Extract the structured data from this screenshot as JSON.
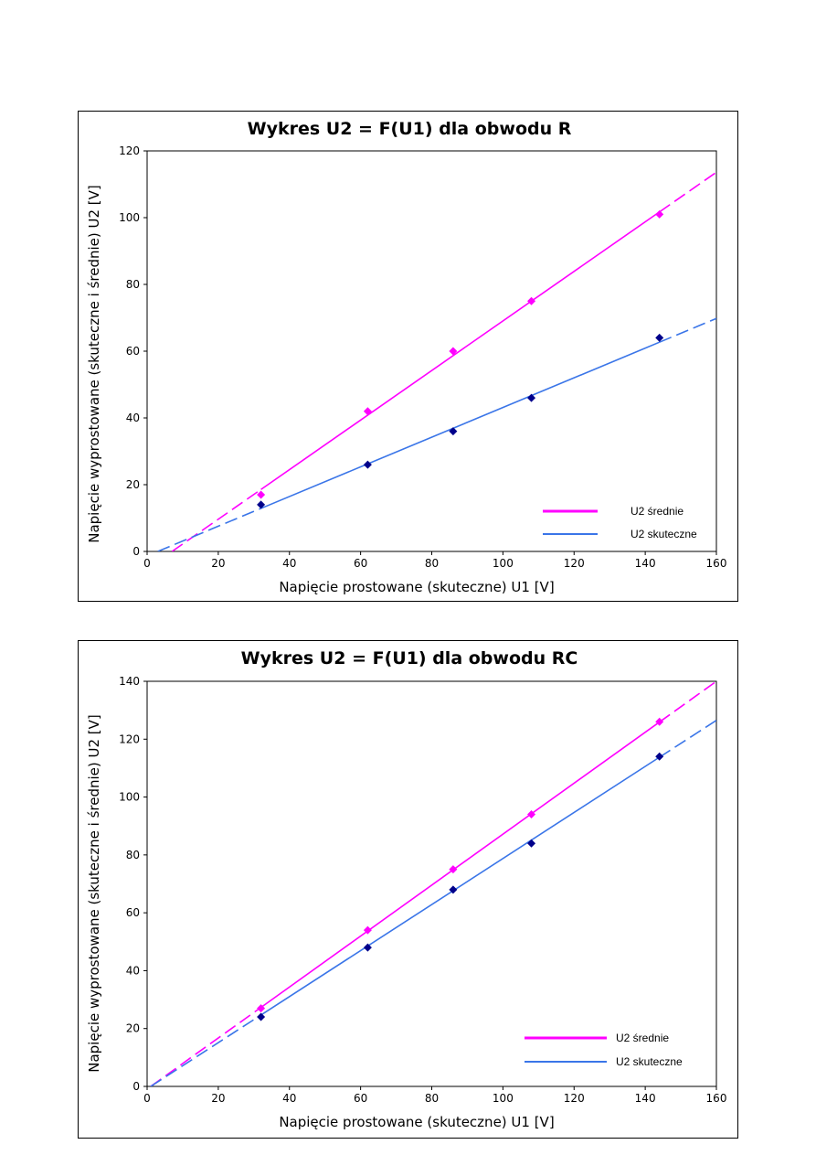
{
  "chart_data": [
    {
      "type": "scatter",
      "title": "Wykres U2 = F(U1) dla obwodu R",
      "xlabel": "Napięcie prostowane (skuteczne) U1 [V]",
      "ylabel": "Napięcie wyprostowane (skuteczne i średnie) U2 [V]",
      "xlim": [
        0,
        160
      ],
      "ylim": [
        0,
        120
      ],
      "xticks": [
        "0",
        "20",
        "40",
        "60",
        "80",
        "100",
        "120",
        "140",
        "160"
      ],
      "yticks": [
        "0",
        "20",
        "40",
        "60",
        "80",
        "100",
        "120"
      ],
      "legend_position": "bottom-right",
      "series": [
        {
          "name": "U2 średnie",
          "color": "#ff00ff",
          "marker_color": "#ff00ff",
          "x": [
            32,
            62,
            86,
            108,
            144
          ],
          "y": [
            17,
            42,
            60,
            75,
            101
          ],
          "trendline": {
            "x_start": 7,
            "x_solid_start": 32,
            "x_solid_end": 144,
            "x_end": 160,
            "y_at_start": 0,
            "y_at_end": 113.6
          }
        },
        {
          "name": "U2 skuteczne",
          "color": "#3a75e8",
          "marker_color": "#00008b",
          "x": [
            32,
            62,
            86,
            108,
            144
          ],
          "y": [
            14,
            26,
            36,
            46,
            64
          ],
          "trendline": {
            "x_start": 3,
            "x_solid_start": 32,
            "x_solid_end": 144,
            "x_end": 160,
            "y_at_start": 0,
            "y_at_end": 69.8
          }
        }
      ]
    },
    {
      "type": "scatter",
      "title": "Wykres U2 = F(U1) dla obwodu RC",
      "xlabel": "Napięcie prostowane (skuteczne) U1 [V]",
      "ylabel": "Napięcie wyprostowane (skuteczne i średnie) U2 [V]",
      "xlim": [
        0,
        160
      ],
      "ylim": [
        0,
        140
      ],
      "xticks": [
        "0",
        "20",
        "40",
        "60",
        "80",
        "100",
        "120",
        "140",
        "160"
      ],
      "yticks": [
        "0",
        "20",
        "40",
        "60",
        "80",
        "100",
        "120",
        "140"
      ],
      "legend_position": "bottom-right",
      "series": [
        {
          "name": "U2 średnie",
          "color": "#ff00ff",
          "marker_color": "#ff00ff",
          "x": [
            32,
            62,
            86,
            108,
            144
          ],
          "y": [
            27,
            54,
            75,
            94,
            126
          ],
          "trendline": {
            "x_start": 1,
            "x_solid_start": 32,
            "x_solid_end": 144,
            "x_end": 160,
            "y_at_start": 0,
            "y_at_end": 140
          }
        },
        {
          "name": "U2 skuteczne",
          "color": "#3a75e8",
          "marker_color": "#00008b",
          "x": [
            32,
            62,
            86,
            108,
            144
          ],
          "y": [
            24,
            48,
            68,
            84,
            114
          ],
          "trendline": {
            "x_start": 1,
            "x_solid_start": 32,
            "x_solid_end": 144,
            "x_end": 160,
            "y_at_start": 0,
            "y_at_end": 126.5
          }
        }
      ]
    }
  ]
}
